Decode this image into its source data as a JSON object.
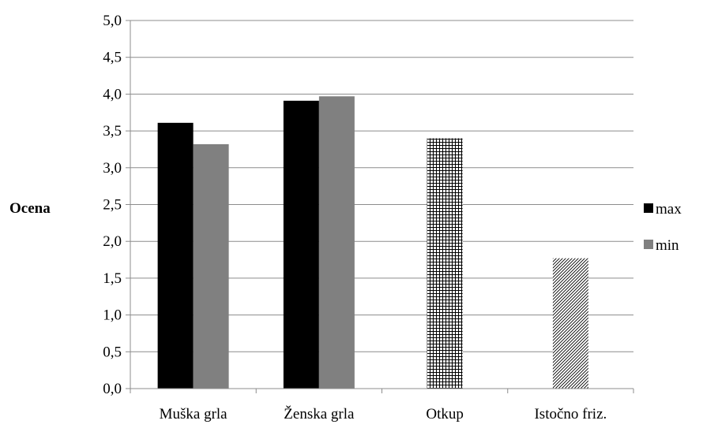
{
  "chart_data": {
    "type": "bar",
    "ylabel": "Ocena",
    "xlabel": "",
    "ylim": [
      0,
      5
    ],
    "y_ticks": [
      "0,0",
      "0,5",
      "1,0",
      "1,5",
      "2,0",
      "2,5",
      "3,0",
      "3,5",
      "4,0",
      "4,5",
      "5,0"
    ],
    "categories": [
      "Muška grla",
      "Ženska grla",
      "Otkup",
      "Istočno friz."
    ],
    "grid": "horizontal",
    "legend_position": "right",
    "series": [
      {
        "name": "max",
        "color": "#000000",
        "values": [
          3.61,
          3.91,
          null,
          null
        ]
      },
      {
        "name": "min",
        "color": "#808080",
        "values": [
          3.32,
          3.97,
          null,
          null
        ]
      }
    ],
    "single_bars": [
      {
        "category": "Otkup",
        "value": 3.4,
        "pattern": "crosshatch"
      },
      {
        "category": "Istočno friz.",
        "value": 1.77,
        "pattern": "diagonal"
      }
    ]
  }
}
